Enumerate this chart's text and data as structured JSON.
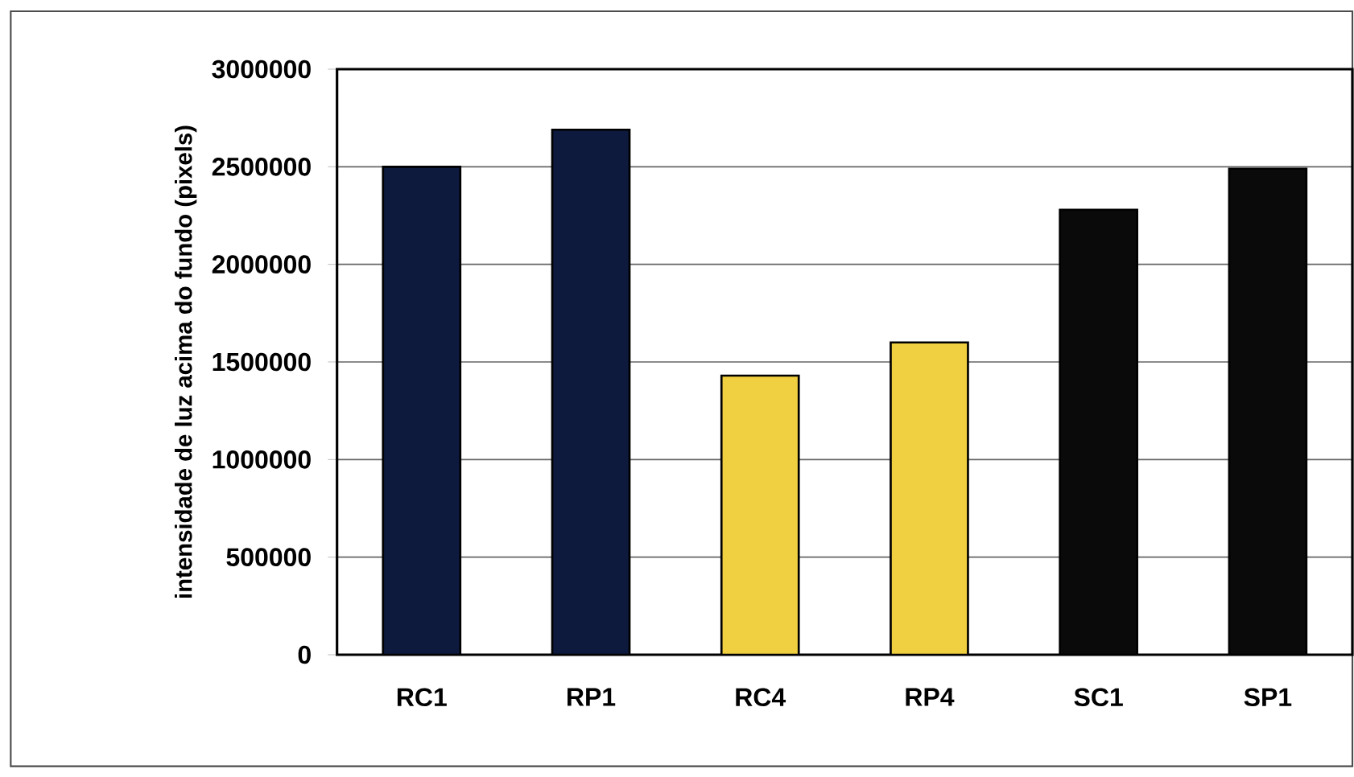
{
  "chart_data": {
    "type": "bar",
    "ylabel": "intensidade de luz acima do fundo (pixels)",
    "categories": [
      "RC1",
      "RP1",
      "RC4",
      "RP4",
      "SC1",
      "SP1"
    ],
    "values": [
      2500000,
      2690000,
      1430000,
      1600000,
      2280000,
      2490000
    ],
    "colors": [
      "#0d1a3d",
      "#0d1a3d",
      "#f0cf40",
      "#f0cf40",
      "#0a0a0a",
      "#0a0a0a"
    ],
    "ylim": [
      0,
      3000000
    ],
    "yticks": [
      0,
      500000,
      1000000,
      1500000,
      2000000,
      2500000,
      3000000
    ],
    "grid": "y"
  }
}
